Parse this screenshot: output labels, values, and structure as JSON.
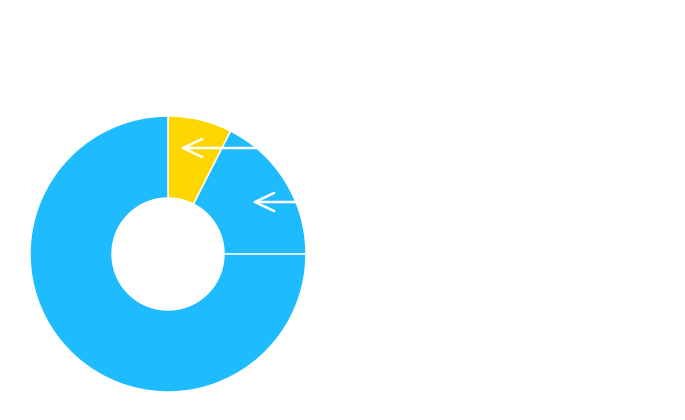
{
  "chart_data": {
    "type": "donut",
    "values": [
      7.5,
      17.5,
      75
    ],
    "colors": [
      "#ffd700",
      "#1fbbff",
      "#1fbbff"
    ],
    "start_angle": 0,
    "direction": "clockwise"
  }
}
